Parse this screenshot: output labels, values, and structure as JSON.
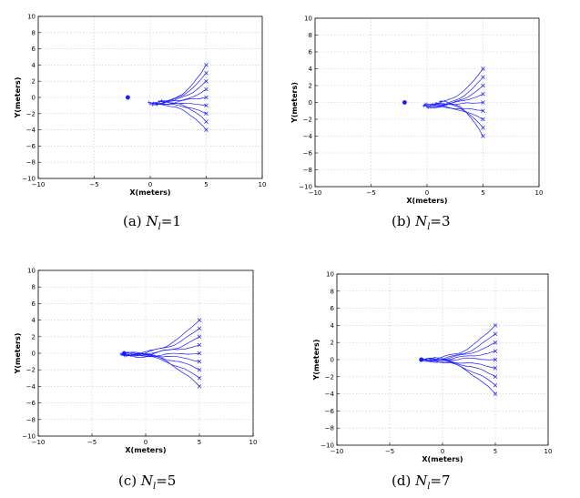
{
  "colors": {
    "trajectory": "#1a1aff",
    "grid": "#c8c8c8",
    "axes": "#000000"
  },
  "chart_data": [
    {
      "type": "line",
      "caption": {
        "label": "(a)",
        "symbol": "N",
        "subscript": "l",
        "value": "=1"
      },
      "xlabel": "X(meters)",
      "ylabel": "Y(meters)",
      "xlim": [
        -10,
        10
      ],
      "ylim": [
        -10,
        10
      ],
      "xticks": [
        "−10",
        "−5",
        "0",
        "5",
        "10"
      ],
      "yticks": [
        "−10",
        "−8",
        "−6",
        "−4",
        "−2",
        "0",
        "2",
        "4",
        "6",
        "8",
        "10"
      ],
      "grid": true,
      "target": {
        "x": -2,
        "y": 0
      },
      "start_points": [
        [
          5,
          4
        ],
        [
          5,
          3
        ],
        [
          5,
          2
        ],
        [
          5,
          1
        ],
        [
          5,
          0
        ],
        [
          5,
          -1
        ],
        [
          5,
          -2
        ],
        [
          5,
          -3
        ],
        [
          5,
          -4
        ]
      ],
      "end_points": [
        [
          0.3,
          -0.7
        ],
        [
          0.0,
          -0.8
        ],
        [
          0.8,
          -0.5
        ],
        [
          0.2,
          -0.9
        ],
        [
          1.0,
          -0.4
        ],
        [
          -0.1,
          -0.6
        ],
        [
          0.5,
          -0.8
        ],
        [
          1.2,
          -0.6
        ],
        [
          0.6,
          -0.9
        ]
      ]
    },
    {
      "type": "line",
      "caption": {
        "label": "(b)",
        "symbol": "N",
        "subscript": "l",
        "value": "=3"
      },
      "xlabel": "X(meters)",
      "ylabel": "Y(meters)",
      "xlim": [
        -10,
        10
      ],
      "ylim": [
        -10,
        10
      ],
      "xticks": [
        "−10",
        "−5",
        "0",
        "5",
        "10"
      ],
      "yticks": [
        "−10",
        "−8",
        "−6",
        "−4",
        "−2",
        "0",
        "2",
        "4",
        "6",
        "8",
        "10"
      ],
      "grid": true,
      "target": {
        "x": -2,
        "y": 0
      },
      "start_points": [
        [
          5,
          4
        ],
        [
          5,
          3
        ],
        [
          5,
          2
        ],
        [
          5,
          1
        ],
        [
          5,
          0
        ],
        [
          5,
          -1
        ],
        [
          5,
          -2
        ],
        [
          5,
          -3
        ],
        [
          5,
          -4
        ]
      ],
      "end_points": [
        [
          -0.1,
          -0.2
        ],
        [
          0.0,
          -0.5
        ],
        [
          0.3,
          -0.4
        ],
        [
          -0.2,
          -0.3
        ],
        [
          0.5,
          -0.2
        ],
        [
          0.1,
          -0.6
        ],
        [
          -0.3,
          -0.4
        ],
        [
          0.8,
          -0.1
        ],
        [
          1.2,
          0.1
        ]
      ]
    },
    {
      "type": "line",
      "caption": {
        "label": "(c)",
        "symbol": "N",
        "subscript": "l",
        "value": "=5"
      },
      "xlabel": "X(meters)",
      "ylabel": "Y(meters)",
      "xlim": [
        -10,
        10
      ],
      "ylim": [
        -10,
        10
      ],
      "xticks": [
        "−10",
        "−5",
        "0",
        "5",
        "10"
      ],
      "yticks": [
        "−10",
        "−8",
        "−6",
        "−4",
        "−2",
        "0",
        "2",
        "4",
        "6",
        "8",
        "10"
      ],
      "grid": true,
      "target": {
        "x": -2,
        "y": 0
      },
      "start_points": [
        [
          5,
          4
        ],
        [
          5,
          3
        ],
        [
          5,
          2
        ],
        [
          5,
          1
        ],
        [
          5,
          0
        ],
        [
          5,
          -1
        ],
        [
          5,
          -2
        ],
        [
          5,
          -3
        ],
        [
          5,
          -4
        ]
      ],
      "end_points": [
        [
          -2.2,
          -0.2
        ],
        [
          -2.0,
          -0.1
        ],
        [
          -1.8,
          -0.3
        ],
        [
          -2.1,
          0.0
        ],
        [
          -1.9,
          -0.2
        ],
        [
          -2.3,
          -0.1
        ],
        [
          -1.7,
          -0.2
        ],
        [
          -2.0,
          -0.3
        ],
        [
          -1.9,
          0.0
        ]
      ]
    },
    {
      "type": "line",
      "caption": {
        "label": "(d)",
        "symbol": "N",
        "subscript": "l",
        "value": "=7"
      },
      "xlabel": "X(meters)",
      "ylabel": "Y(meters)",
      "xlim": [
        -10,
        10
      ],
      "ylim": [
        -10,
        10
      ],
      "xticks": [
        "−10",
        "−5",
        "0",
        "5",
        "10"
      ],
      "yticks": [
        "−10",
        "−8",
        "−6",
        "−4",
        "−2",
        "0",
        "2",
        "4",
        "6",
        "8",
        "10"
      ],
      "grid": true,
      "target": {
        "x": -2,
        "y": 0
      },
      "start_points": [
        [
          5,
          4
        ],
        [
          5,
          3
        ],
        [
          5,
          2
        ],
        [
          5,
          1
        ],
        [
          5,
          0
        ],
        [
          5,
          -1
        ],
        [
          5,
          -2
        ],
        [
          5,
          -3
        ],
        [
          5,
          -4
        ]
      ],
      "end_points": [
        [
          -2.0,
          0.0
        ],
        [
          -2.0,
          -0.1
        ],
        [
          -1.9,
          0.0
        ],
        [
          -2.1,
          0.0
        ],
        [
          -2.0,
          0.1
        ],
        [
          -1.9,
          -0.1
        ],
        [
          -2.0,
          0.0
        ],
        [
          -2.1,
          -0.1
        ],
        [
          -2.0,
          0.0
        ]
      ]
    }
  ]
}
